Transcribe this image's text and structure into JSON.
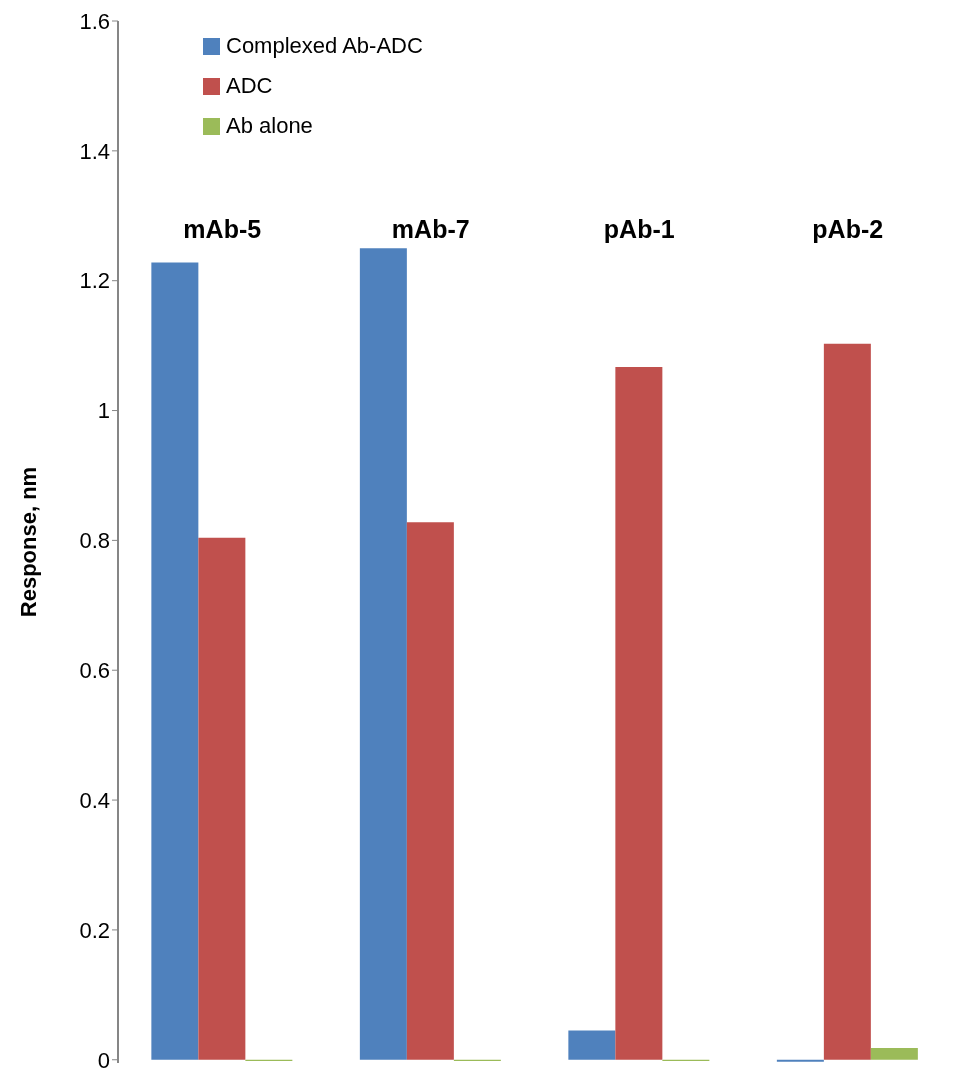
{
  "chart_data": {
    "type": "bar",
    "ylabel": "Response, nm",
    "categories": [
      "mAb-5",
      "mAb-7",
      "pAb-1",
      "pAb-2"
    ],
    "series": [
      {
        "name": "Complexed Ab-ADC",
        "color": "#4f81bd",
        "values": [
          1.228,
          1.25,
          0.045,
          -0.003
        ]
      },
      {
        "name": "ADC",
        "color": "#c0504d",
        "values": [
          0.804,
          0.828,
          1.067,
          1.103
        ]
      },
      {
        "name": "Ab alone",
        "color": "#9bbb59",
        "values": [
          -0.002,
          -0.002,
          -0.002,
          0.018
        ]
      }
    ],
    "ylim": [
      -0.005,
      1.6
    ],
    "yticks": [
      0,
      0.2,
      0.4,
      0.6,
      0.8,
      1,
      1.2,
      1.4,
      1.6
    ],
    "grid": false,
    "legend": "top left"
  }
}
